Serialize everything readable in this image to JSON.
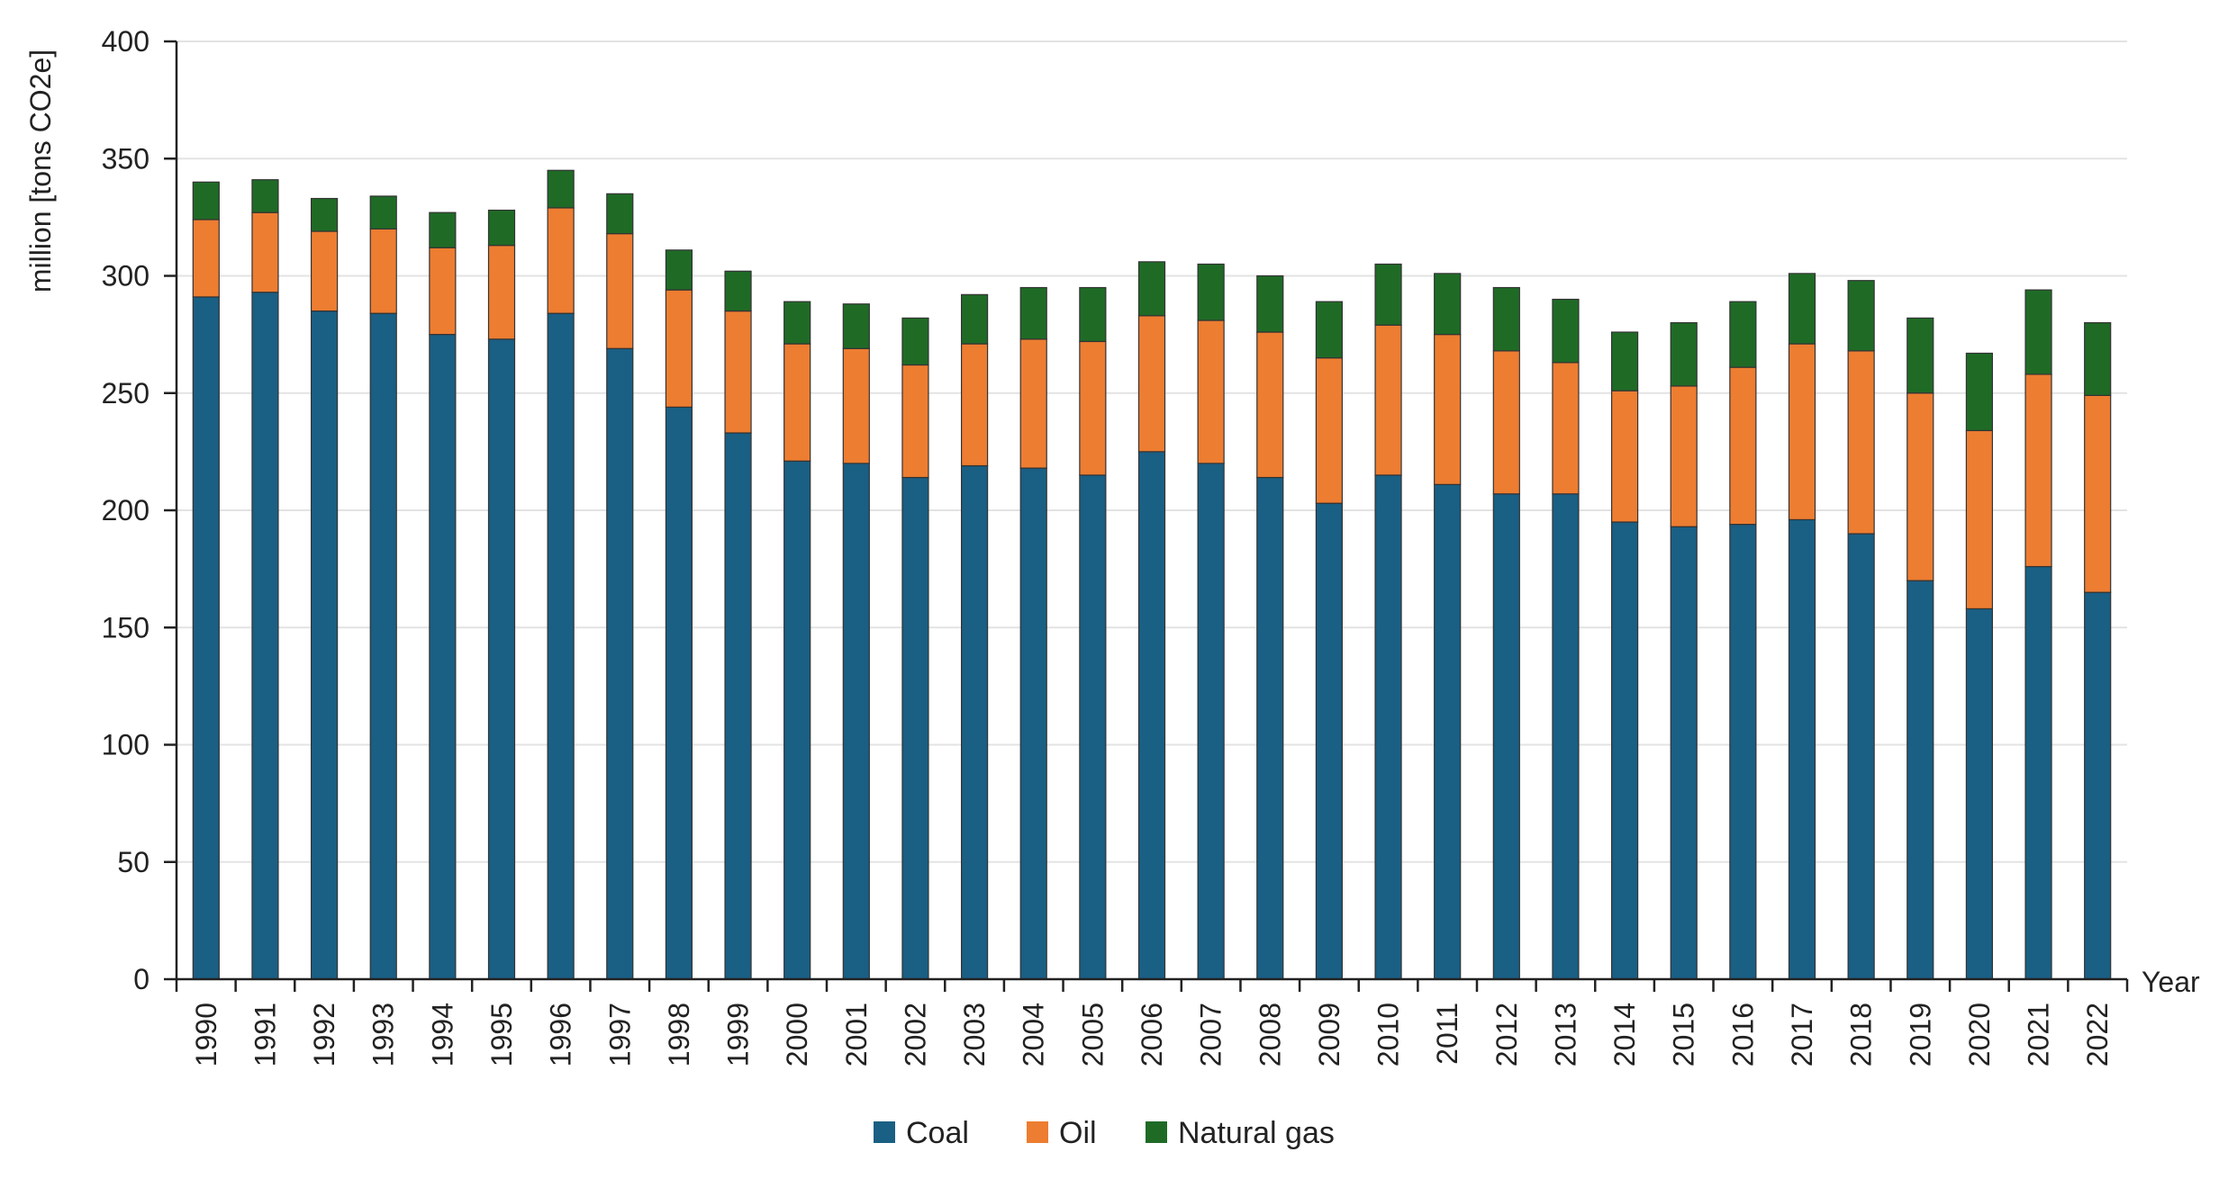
{
  "colors": {
    "coal": "#1a5f84",
    "oil": "#ed7d31",
    "gas": "#1f6b26",
    "grid": "#e3e3e3",
    "axis": "#222222"
  },
  "chart_data": {
    "type": "bar",
    "stacked": true,
    "title": "",
    "xlabel": "Year",
    "ylabel": "million  [tons CO2e]",
    "ylim": [
      0,
      400
    ],
    "yticks": [
      0,
      50,
      100,
      150,
      200,
      250,
      300,
      350,
      400
    ],
    "grid": true,
    "legend_position": "bottom",
    "categories": [
      "1990",
      "1991",
      "1992",
      "1993",
      "1994",
      "1995",
      "1996",
      "1997",
      "1998",
      "1999",
      "2000",
      "2001",
      "2002",
      "2003",
      "2004",
      "2005",
      "2006",
      "2007",
      "2008",
      "2009",
      "2010",
      "2011",
      "2012",
      "2013",
      "2014",
      "2015",
      "2016",
      "2017",
      "2018",
      "2019",
      "2020",
      "2021",
      "2022"
    ],
    "series": [
      {
        "name": "Coal",
        "color": "#1a5f84",
        "values": [
          291,
          293,
          285,
          284,
          275,
          273,
          284,
          269,
          244,
          233,
          221,
          220,
          214,
          219,
          218,
          215,
          225,
          220,
          214,
          203,
          215,
          211,
          207,
          207,
          195,
          193,
          194,
          196,
          190,
          170,
          158,
          176,
          165
        ]
      },
      {
        "name": "Oil",
        "color": "#ed7d31",
        "values": [
          33,
          34,
          34,
          36,
          37,
          40,
          45,
          49,
          50,
          52,
          50,
          49,
          48,
          52,
          55,
          57,
          58,
          61,
          62,
          62,
          64,
          64,
          61,
          56,
          56,
          60,
          67,
          75,
          78,
          80,
          76,
          82,
          84
        ]
      },
      {
        "name": "Natural gas",
        "color": "#1f6b26",
        "values": [
          16,
          14,
          14,
          14,
          15,
          15,
          16,
          17,
          17,
          17,
          18,
          19,
          20,
          21,
          22,
          23,
          23,
          24,
          24,
          24,
          26,
          26,
          27,
          27,
          25,
          27,
          28,
          30,
          30,
          32,
          33,
          36,
          31
        ]
      }
    ]
  }
}
